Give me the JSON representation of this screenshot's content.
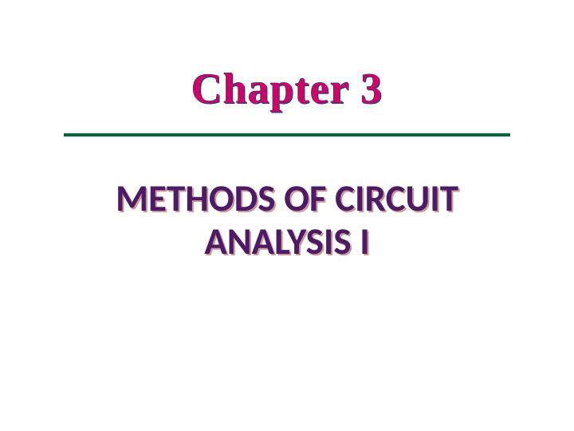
{
  "slide": {
    "chapter_label": "Chapter 3",
    "main_heading_line1": "METHODS OF CIRCUIT",
    "main_heading_line2": "ANALYSIS I",
    "chapter_color": "#cc0066",
    "chapter_outline_color": "#004d80",
    "chapter_fontsize": 54,
    "chapter_font": "Times New Roman",
    "divider_color": "#006633",
    "divider_width": 560,
    "divider_height": 4,
    "heading_color": "#4d1a66",
    "heading_shadow_color": "#cc9999",
    "heading_fontsize": 47,
    "heading_font": "Calibri",
    "background_color": "#ffffff"
  }
}
